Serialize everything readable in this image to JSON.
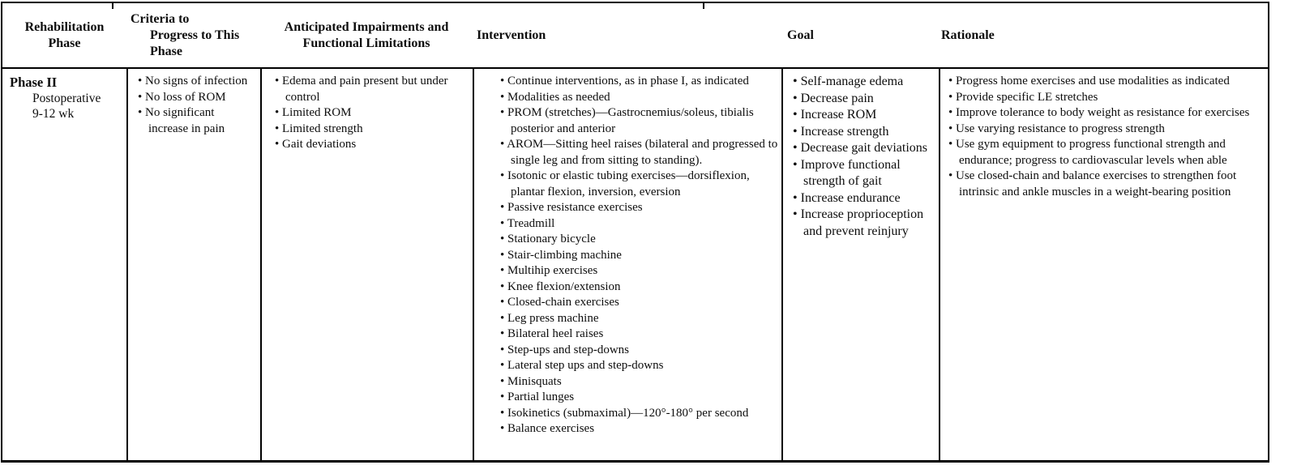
{
  "table": {
    "bullet_glyph": "•",
    "headers": [
      {
        "label": "Rehabilitation\nPhase"
      },
      {
        "label": "Criteria to\n      Progress to This\n      Phase"
      },
      {
        "label": "Anticipated Impairments and\nFunctional Limitations"
      },
      {
        "label": "Intervention"
      },
      {
        "label": "Goal"
      },
      {
        "label": "Rationale"
      }
    ],
    "row": {
      "phase": {
        "title": "Phase II",
        "details": [
          "Postoperative",
          "9-12 wk"
        ]
      },
      "criteria_bullets": [
        "No signs of infection",
        "No loss of ROM",
        "No significant increase in pain"
      ],
      "impairment_bullets": [
        "Edema and pain present but under control",
        "Limited ROM",
        "Limited strength",
        "Gait deviations"
      ],
      "intervention_bullets": [
        "Continue interventions, as in phase I, as indicated",
        "Modalities as needed",
        "PROM (stretches)—Gastrocnemius/soleus, tibialis posterior and anterior",
        "AROM—Sitting heel raises (bilateral and progressed to single leg and from sitting to standing).",
        "Isotonic or elastic tubing exercises—dorsiflexion, plantar flexion, inversion, eversion",
        "Passive resistance exercises",
        "Treadmill",
        "Stationary bicycle",
        "Stair-climbing machine",
        "Multihip exercises",
        "Knee flexion/extension",
        "Closed-chain exercises",
        "Leg press machine",
        "Bilateral heel raises",
        "Step-ups and step-downs",
        "Lateral step ups and step-downs",
        "Minisquats",
        "Partial lunges",
        "Isokinetics (submaximal)—120°-180° per second",
        "Balance exercises"
      ],
      "goal_bullets": [
        "Self-manage edema",
        "Decrease pain",
        "Increase ROM",
        "Increase strength",
        "Decrease gait deviations",
        "Improve functional strength of gait",
        "Increase endurance",
        "Increase proprioception and prevent reinjury"
      ],
      "rationale_bullets": [
        "Progress home exercises and use modalities as indicated",
        "Provide specific LE stretches",
        "Improve tolerance to body weight as resistance for exercises",
        "Use varying resistance to progress strength",
        "Use gym equipment to progress functional strength and endurance; progress to cardiovascular levels when able",
        "Use closed-chain and balance exercises to strengthen foot intrinsic and ankle muscles in a weight-bearing position"
      ]
    }
  }
}
